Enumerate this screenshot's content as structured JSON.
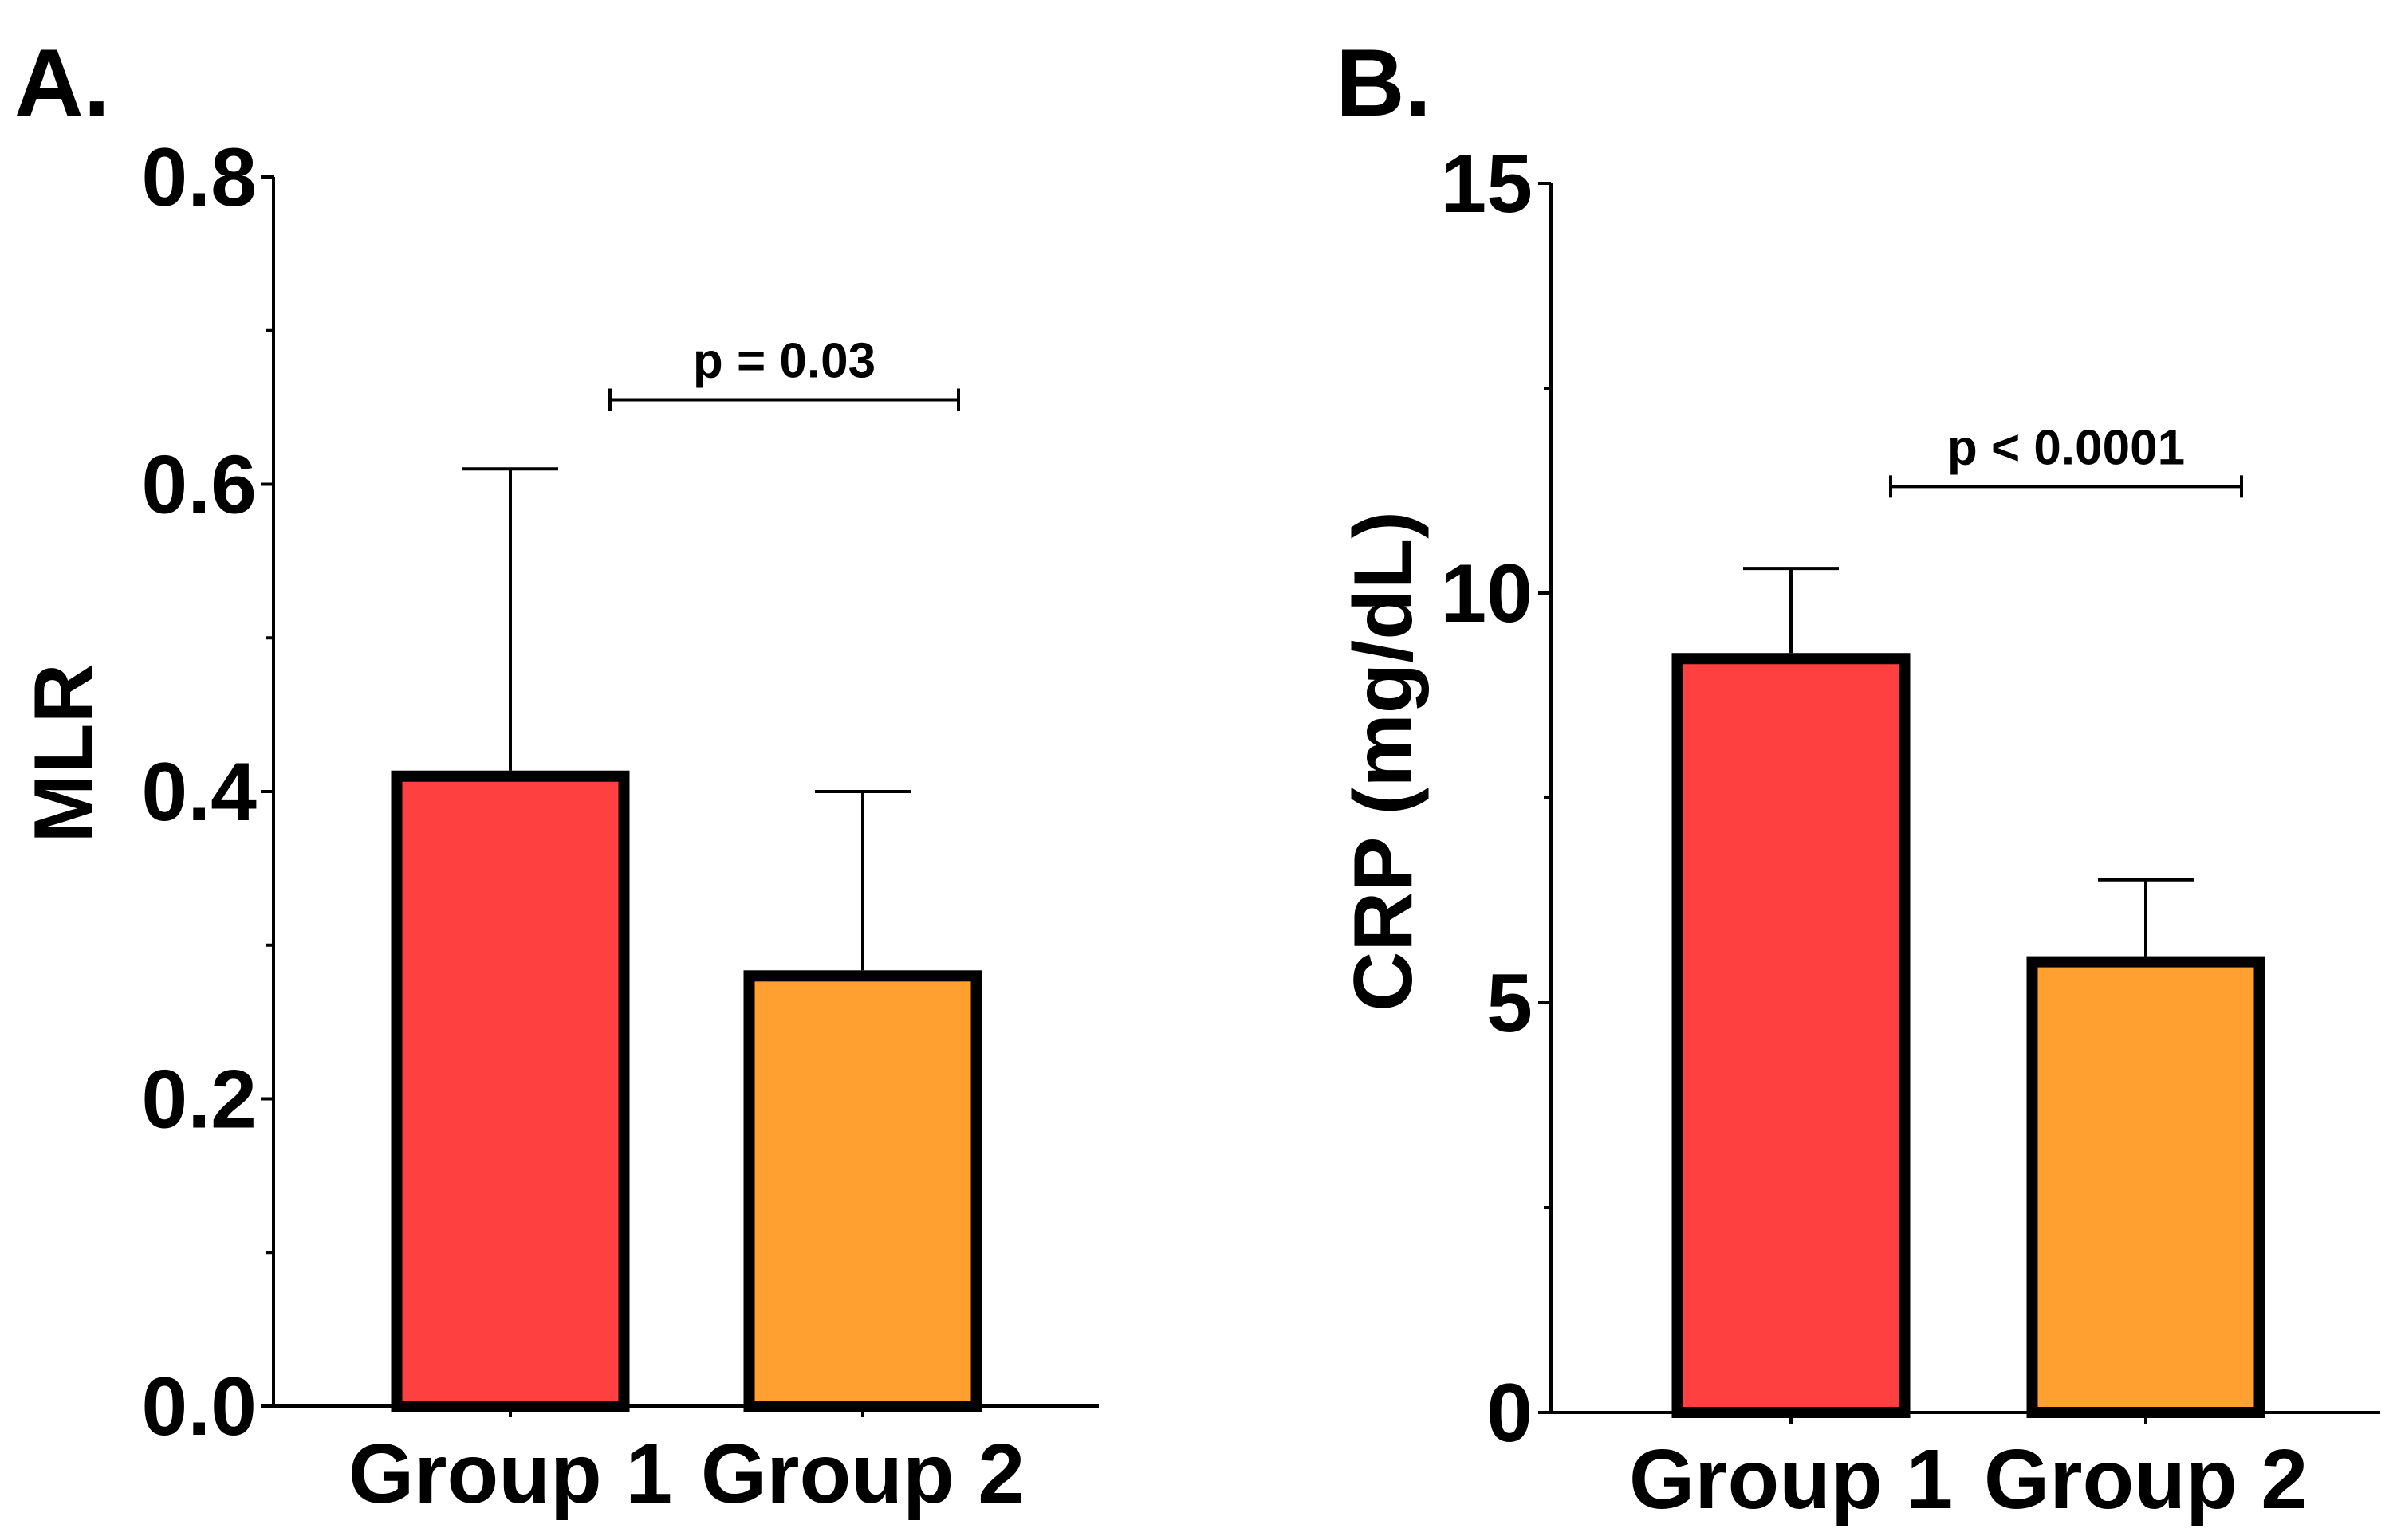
{
  "chart_data": [
    {
      "type": "bar",
      "panel_label": "A.",
      "title": "",
      "xlabel": "",
      "ylabel": "MLR",
      "categories": [
        "Group 1",
        "Group 2"
      ],
      "values": [
        0.41,
        0.28
      ],
      "error_upper": [
        0.61,
        0.4
      ],
      "ylim": [
        0,
        0.8
      ],
      "yticks": [
        0.0,
        0.2,
        0.4,
        0.6,
        0.8
      ],
      "ytick_labels": [
        "0.0",
        "0.2",
        "0.4",
        "0.6",
        "0.8"
      ],
      "yminor_ticks": [
        0.1,
        0.3,
        0.5,
        0.7
      ],
      "bar_colors": [
        "#ff4040",
        "#ffa030"
      ],
      "significance": {
        "label": "p = 0.03",
        "from": 0,
        "to": 1,
        "y": 0.655
      }
    },
    {
      "type": "bar",
      "panel_label": "B.",
      "title": "",
      "xlabel": "",
      "ylabel": "CRP (mg/dL)",
      "categories": [
        "Group 1",
        "Group 2"
      ],
      "values": [
        9.2,
        5.5
      ],
      "error_upper": [
        10.3,
        6.5
      ],
      "ylim": [
        0,
        15
      ],
      "yticks": [
        0,
        5,
        10,
        15
      ],
      "ytick_labels": [
        "0",
        "5",
        "10",
        "15"
      ],
      "yminor_ticks": [
        2.5,
        7.5,
        12.5
      ],
      "bar_colors": [
        "#ff4040",
        "#ffa030"
      ],
      "significance": {
        "label": "p < 0.0001",
        "from": 0,
        "to": 1,
        "y": 11.3
      }
    }
  ]
}
